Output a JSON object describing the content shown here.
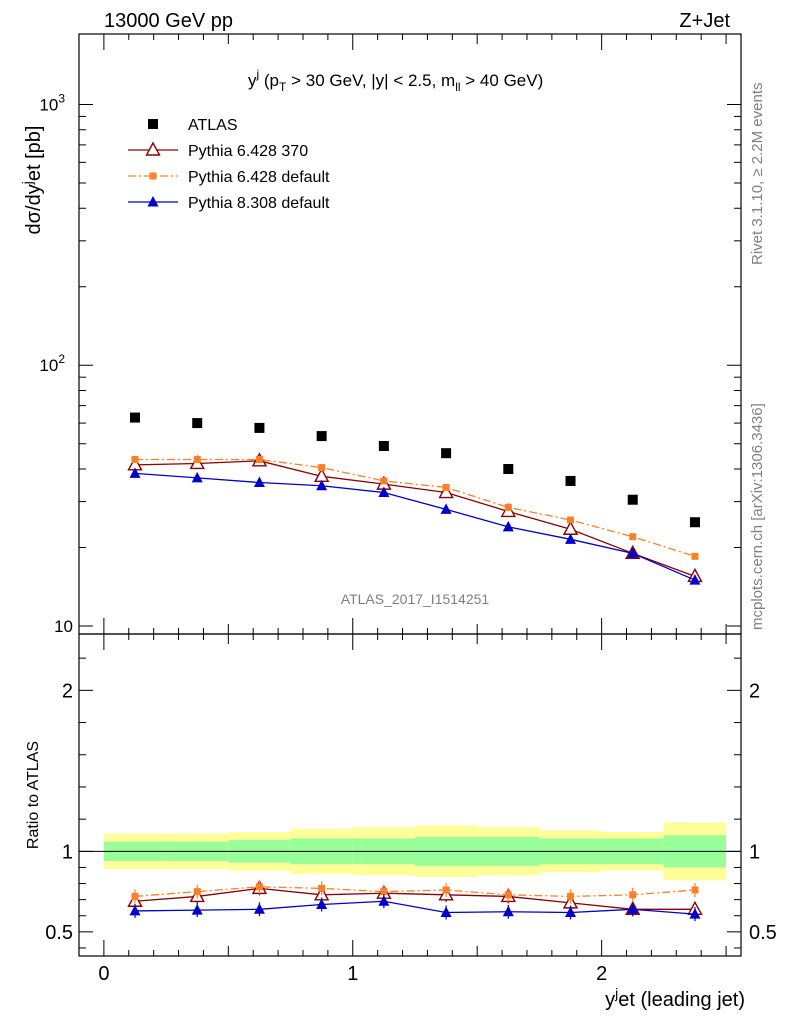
{
  "header": {
    "left": "13000 GeV pp",
    "right": "Z+Jet"
  },
  "side": {
    "rivet": "Rivet 3.1.10, ≥ 2.2M events",
    "mcplots": "mcplots.cern.ch [arXiv:1306.3436]"
  },
  "chart_data": {
    "type": "scatter",
    "analysis_label": "ATLAS_2017_I1514251",
    "title_parts": {
      "main": "y",
      "main_sup": "j",
      "cuts_a": " (p",
      "cuts_a_sub": "T",
      "cuts_b": " > 30 GeV, |y| < 2.5, m",
      "cuts_b_sub": "ll",
      "cuts_c": " > 40 GeV)"
    },
    "ylabel_parts": {
      "a": "dσ/dy",
      "sup": "j",
      "b": "et [pb]"
    },
    "xlabel_parts": {
      "a": "y",
      "sup": "j",
      "b": "et (leading jet)"
    },
    "ratio_ylabel": "Ratio to ATLAS",
    "main_yscale": "log",
    "main_ylim": [
      10,
      2000
    ],
    "main_ytick_labels": [
      {
        "value": 10,
        "base": "10",
        "exp": ""
      },
      {
        "value": 100,
        "base": "10",
        "exp": "2"
      },
      {
        "value": 1000,
        "base": "10",
        "exp": "3"
      }
    ],
    "xlim": [
      -0.1,
      2.56
    ],
    "x_ticks": [
      "0",
      "1",
      "2"
    ],
    "ratio_ylim": [
      0.35,
      2.35
    ],
    "ratio_ticks": [
      "0.5",
      "1",
      "2"
    ],
    "bins": [
      0.0,
      0.25,
      0.5,
      0.75,
      1.0,
      1.25,
      1.5,
      1.75,
      2.0,
      2.25,
      2.5
    ],
    "x": [
      0.125,
      0.375,
      0.625,
      0.875,
      1.125,
      1.375,
      1.625,
      1.875,
      2.125,
      2.375
    ],
    "band_inner": [
      [
        0.94,
        1.06
      ],
      [
        0.94,
        1.06
      ],
      [
        0.93,
        1.07
      ],
      [
        0.92,
        1.08
      ],
      [
        0.92,
        1.08
      ],
      [
        0.91,
        1.09
      ],
      [
        0.91,
        1.09
      ],
      [
        0.92,
        1.08
      ],
      [
        0.92,
        1.08
      ],
      [
        0.9,
        1.1
      ]
    ],
    "band_outer": [
      [
        0.89,
        1.11
      ],
      [
        0.89,
        1.11
      ],
      [
        0.88,
        1.12
      ],
      [
        0.86,
        1.14
      ],
      [
        0.85,
        1.15
      ],
      [
        0.84,
        1.16
      ],
      [
        0.85,
        1.15
      ],
      [
        0.87,
        1.13
      ],
      [
        0.88,
        1.12
      ],
      [
        0.82,
        1.18
      ]
    ],
    "series": [
      {
        "name": "ATLAS",
        "marker": "square",
        "color": "#000000",
        "values": [
          63.0,
          60.0,
          57.5,
          53.5,
          49.0,
          46.0,
          40.0,
          36.0,
          30.5,
          25.0
        ]
      },
      {
        "name": "Pythia 6.428 370",
        "marker": "triangle-open",
        "color": "#8b0000",
        "values": [
          41.5,
          42.0,
          43.0,
          37.5,
          35.0,
          32.5,
          27.5,
          23.5,
          19.0,
          15.5
        ],
        "ratio": [
          0.69,
          0.72,
          0.77,
          0.73,
          0.74,
          0.73,
          0.72,
          0.68,
          0.64,
          0.64
        ]
      },
      {
        "name": "Pythia 6.428 default",
        "marker": "square-small",
        "color": "#ff7f27",
        "dash": "dashdot",
        "values": [
          43.5,
          43.5,
          43.5,
          40.5,
          36.0,
          34.0,
          28.5,
          25.5,
          22.0,
          18.5
        ],
        "ratio": [
          0.72,
          0.75,
          0.78,
          0.77,
          0.75,
          0.76,
          0.73,
          0.72,
          0.73,
          0.76
        ]
      },
      {
        "name": "Pythia 8.308 default",
        "marker": "triangle",
        "color": "#0000cc",
        "values": [
          38.5,
          37.0,
          35.5,
          34.5,
          32.5,
          28.0,
          24.0,
          21.5,
          19.0,
          15.0
        ],
        "ratio": [
          0.63,
          0.635,
          0.64,
          0.67,
          0.69,
          0.62,
          0.625,
          0.62,
          0.64,
          0.61
        ]
      }
    ]
  }
}
